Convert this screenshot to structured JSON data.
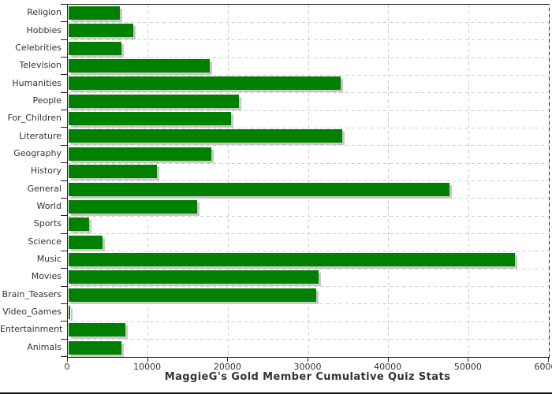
{
  "chart_data": {
    "type": "bar",
    "orientation": "horizontal",
    "title": "MaggieG's Gold Member Cumulative Quiz Stats",
    "title_position": "bottom",
    "categories": [
      "Religion",
      "Hobbies",
      "Celebrities",
      "Television",
      "Humanities",
      "People",
      "For_Children",
      "Literature",
      "Geography",
      "History",
      "General",
      "World",
      "Sports",
      "Science",
      "Music",
      "Movies",
      "Brain_Teasers",
      "Video_Games",
      "Entertainment",
      "Animals"
    ],
    "values": [
      6400,
      8100,
      6600,
      17600,
      33900,
      21200,
      20300,
      34100,
      17800,
      11000,
      47500,
      16000,
      2600,
      4200,
      55700,
      31200,
      30900,
      200,
      7100,
      6600
    ],
    "xlabel": "",
    "ylabel": "",
    "xlim": [
      0,
      60000
    ],
    "x_ticks": [
      0,
      10000,
      20000,
      30000,
      40000,
      50000,
      60000
    ],
    "x_tick_labels": [
      "0",
      "10000",
      "20000",
      "30000",
      "40000",
      "50000",
      "60000"
    ],
    "grid": "dashed",
    "legend": "none",
    "colors": {
      "bar": "#008000",
      "bar_shadow": "#c8c8c8",
      "grid": "#cccccc",
      "axis": "#222222",
      "text": "#333333"
    }
  }
}
